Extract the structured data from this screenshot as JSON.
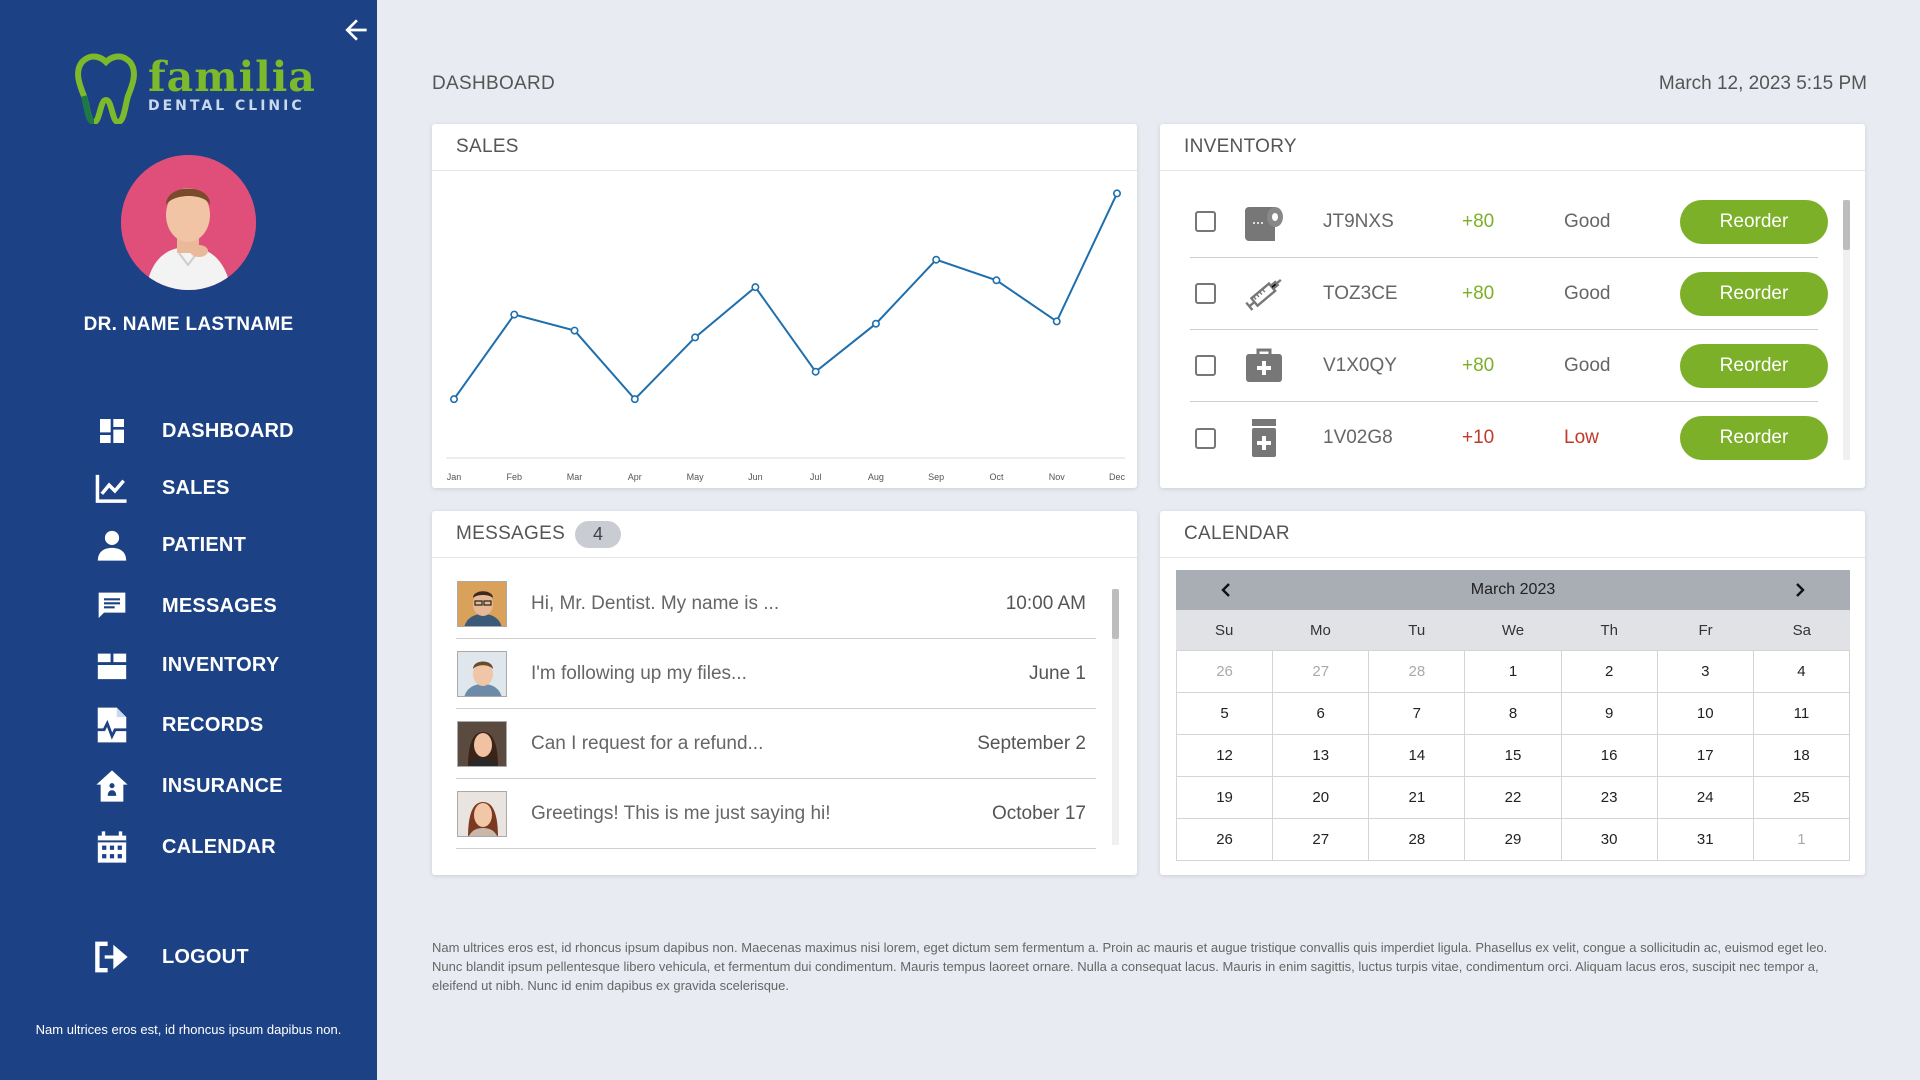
{
  "sidebar": {
    "brand": {
      "name": "familia",
      "sub": "DENTAL CLINIC"
    },
    "doctor_name": "DR. NAME LASTNAME",
    "items": [
      {
        "label": "DASHBOARD",
        "icon": "dashboard-icon"
      },
      {
        "label": "SALES",
        "icon": "chart-icon"
      },
      {
        "label": "PATIENT",
        "icon": "person-icon"
      },
      {
        "label": "MESSAGES",
        "icon": "message-icon"
      },
      {
        "label": "INVENTORY",
        "icon": "box-icon"
      },
      {
        "label": "RECORDS",
        "icon": "records-icon"
      },
      {
        "label": "INSURANCE",
        "icon": "insurance-icon"
      },
      {
        "label": "CALENDAR",
        "icon": "calendar-icon"
      }
    ],
    "logout": "LOGOUT",
    "footer": "Nam ultrices eros est, id rhoncus ipsum dapibus non."
  },
  "header": {
    "title": "DASHBOARD",
    "datetime": "March 12, 2023 5:15 PM"
  },
  "sales": {
    "title": "SALES"
  },
  "chart_data": {
    "type": "line",
    "categories": [
      "Jan",
      "Feb",
      "Mar",
      "Apr",
      "May",
      "Jun",
      "Jul",
      "Aug",
      "Sep",
      "Oct",
      "Nov",
      "Dec"
    ],
    "values": [
      10,
      47,
      40,
      10,
      37,
      59,
      22,
      43,
      71,
      62,
      44,
      100
    ],
    "ylim": [
      0,
      105
    ],
    "grid": false,
    "color": "#1f6fad"
  },
  "inventory": {
    "title": "INVENTORY",
    "reorder_label": "Reorder",
    "rows": [
      {
        "code": "JT9NXS",
        "qty": "+80",
        "status": "Good",
        "icon": "tissue-roll-icon"
      },
      {
        "code": "TOZ3CE",
        "qty": "+80",
        "status": "Good",
        "icon": "syringe-icon"
      },
      {
        "code": "V1X0QY",
        "qty": "+80",
        "status": "Good",
        "icon": "medical-kit-icon"
      },
      {
        "code": "1V02G8",
        "qty": "+10",
        "status": "Low",
        "icon": "pill-bottle-icon"
      }
    ],
    "colors": {
      "good": "#7cb028",
      "low": "#c0392b"
    }
  },
  "messages": {
    "title": "MESSAGES",
    "count": "4",
    "items": [
      {
        "text": "Hi, Mr. Dentist. My name is ...",
        "time": "10:00 AM"
      },
      {
        "text": "I'm following up my files...",
        "time": "June 1"
      },
      {
        "text": "Can I request for a refund...",
        "time": "September 2"
      },
      {
        "text": "Greetings! This is me just saying hi!",
        "time": "October 17"
      }
    ]
  },
  "calendar": {
    "title": "CALENDAR",
    "month": "March 2023",
    "days_of_week": [
      "Su",
      "Mo",
      "Tu",
      "We",
      "Th",
      "Fr",
      "Sa"
    ],
    "cells": [
      {
        "d": "26",
        "m": true
      },
      {
        "d": "27",
        "m": true
      },
      {
        "d": "28",
        "m": true
      },
      {
        "d": "1"
      },
      {
        "d": "2"
      },
      {
        "d": "3"
      },
      {
        "d": "4"
      },
      {
        "d": "5"
      },
      {
        "d": "6"
      },
      {
        "d": "7"
      },
      {
        "d": "8"
      },
      {
        "d": "9"
      },
      {
        "d": "10"
      },
      {
        "d": "11"
      },
      {
        "d": "12"
      },
      {
        "d": "13"
      },
      {
        "d": "14"
      },
      {
        "d": "15"
      },
      {
        "d": "16"
      },
      {
        "d": "17"
      },
      {
        "d": "18"
      },
      {
        "d": "19"
      },
      {
        "d": "20"
      },
      {
        "d": "21"
      },
      {
        "d": "22"
      },
      {
        "d": "23"
      },
      {
        "d": "24"
      },
      {
        "d": "25"
      },
      {
        "d": "26"
      },
      {
        "d": "27"
      },
      {
        "d": "28"
      },
      {
        "d": "29"
      },
      {
        "d": "30"
      },
      {
        "d": "31"
      },
      {
        "d": "1",
        "m": true
      }
    ]
  },
  "footer_text": "Nam ultrices eros est, id rhoncus ipsum dapibus non. Maecenas maximus nisi lorem, eget dictum sem fermentum a. Proin ac mauris et augue tristique convallis quis imperdiet ligula. Phasellus ex velit, congue a sollicitudin ac, euismod eget leo. Nunc blandit ipsum pellentesque libero vehicula, et fermentum dui condimentum. Mauris tempus laoreet ornare. Nulla a consequat lacus. Mauris in enim sagittis, luctus turpis vitae, condimentum orci. Aliquam lacus eros, suscipit nec tempor a, eleifend ut nibh. Nunc id enim dapibus ex gravida scelerisque."
}
